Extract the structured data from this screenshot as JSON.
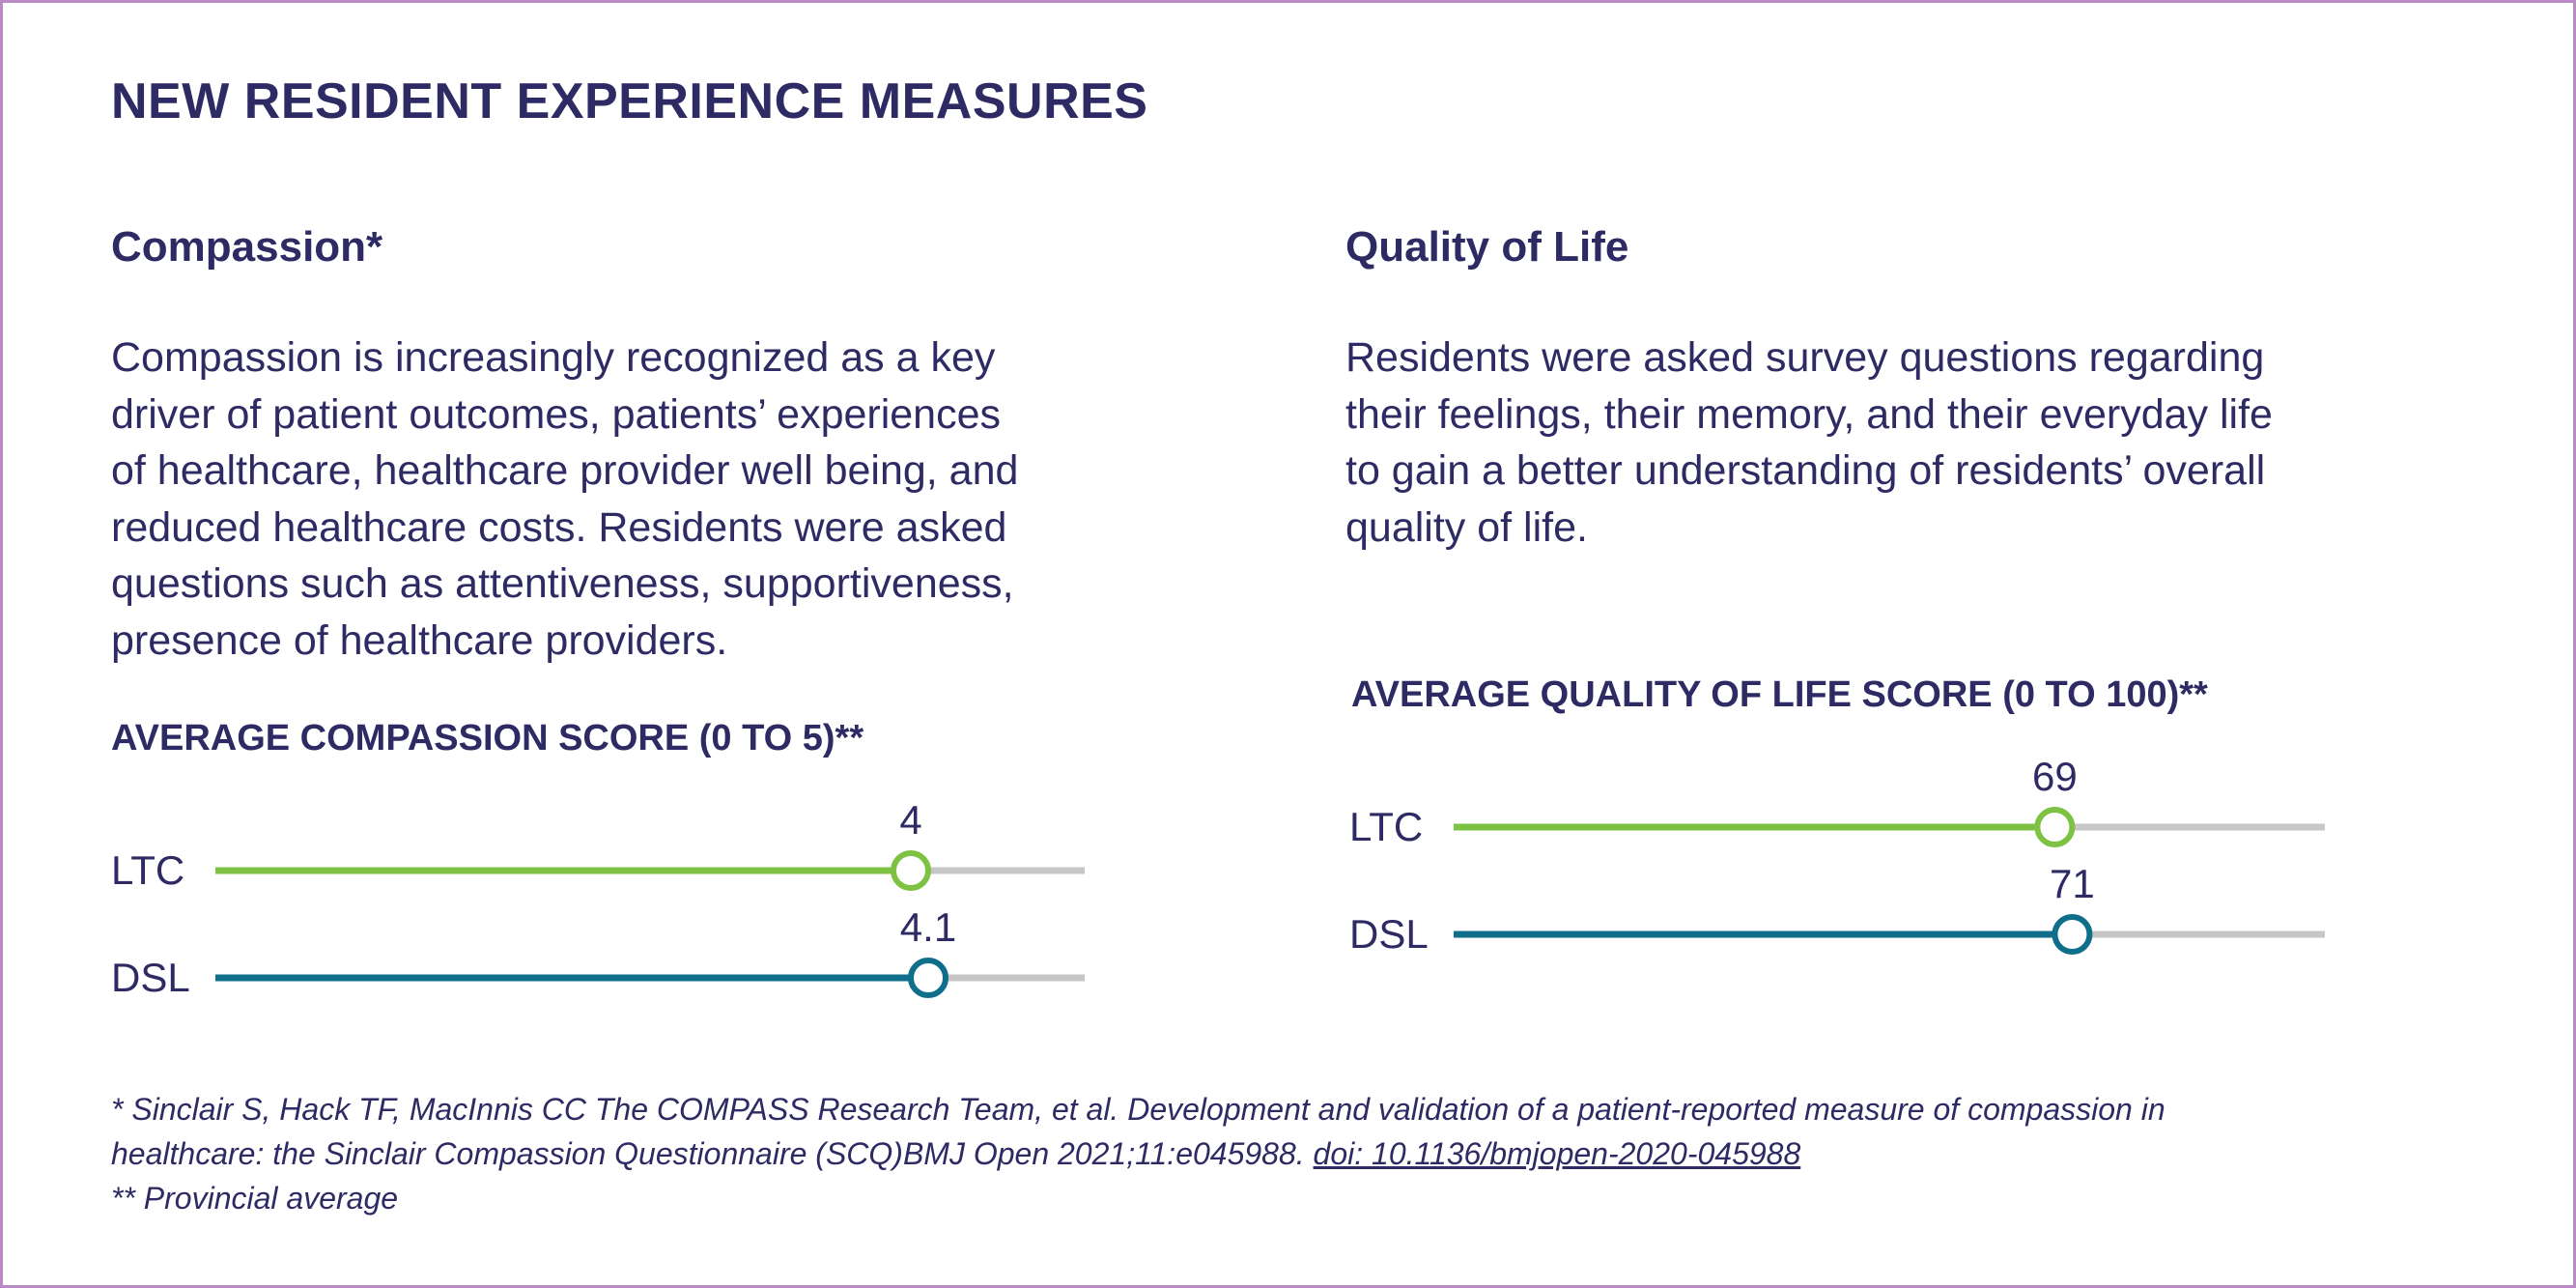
{
  "page": {
    "title": "NEW RESIDENT EXPERIENCE MEASURES"
  },
  "compassion": {
    "heading": "Compassion*",
    "lines": [
      "Compassion is increasingly recognized as a key",
      "driver of patient outcomes, patients’ experiences",
      "of healthcare, healthcare provider well being, and",
      "reduced healthcare costs. Residents were asked",
      "questions such as attentiveness, supportiveness,",
      "presence of healthcare providers."
    ]
  },
  "quality": {
    "heading": "Quality of Life",
    "lines": [
      "Residents were asked survey questions regarding",
      "their feelings, their memory, and their everyday life",
      "to gain a better understanding of residents’ overall",
      "quality of life."
    ]
  },
  "chart_data": [
    {
      "type": "bar",
      "title": "AVERAGE COMPASSION SCORE (0 TO 5)**",
      "xlim": [
        0,
        5
      ],
      "categories": [
        "LTC",
        "DSL"
      ],
      "values": [
        4,
        4.1
      ],
      "value_labels": [
        "4",
        "4.1"
      ],
      "colors": [
        "#7dc242",
        "#0f6f8a"
      ],
      "track_color": "#c6c6c6"
    },
    {
      "type": "bar",
      "title": "AVERAGE QUALITY OF LIFE SCORE (0 TO 100)**",
      "xlim": [
        0,
        100
      ],
      "categories": [
        "LTC",
        "DSL"
      ],
      "values": [
        69,
        71
      ],
      "value_labels": [
        "69",
        "71"
      ],
      "colors": [
        "#7dc242",
        "#0f6f8a"
      ],
      "track_color": "#c6c6c6"
    }
  ],
  "footnotes": {
    "citation_line1": "* Sinclair S, Hack TF, MacInnis CC The COMPASS Research Team, et al. Development and validation of a patient-reported measure of compassion in",
    "citation_line2": "healthcare: the Sinclair Compassion Questionnaire (SCQ)BMJ Open 2021;11:e045988.",
    "doi": "doi: 10.1136/bmjopen-2020-045988",
    "provincial": "** Provincial average"
  }
}
